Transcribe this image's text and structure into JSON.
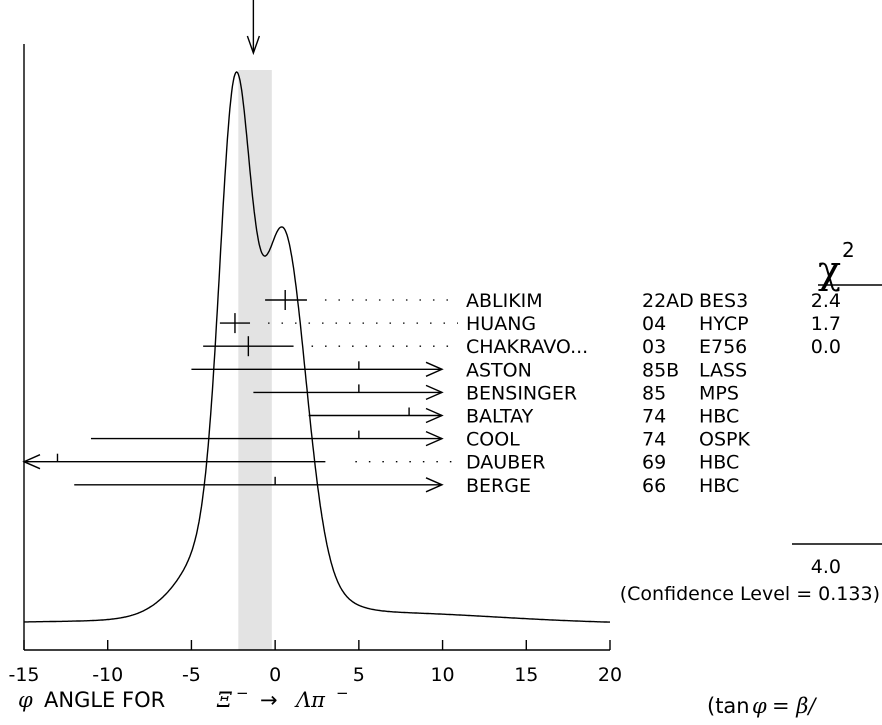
{
  "chart_data": {
    "type": "ideogram",
    "xlim": [
      -15,
      20
    ],
    "x_ticks": [
      "-15",
      "-10",
      "-5",
      "0",
      "5",
      "10",
      "15",
      "20"
    ],
    "x_tick_values": [
      -15,
      -10,
      -5,
      0,
      5,
      10,
      15,
      20
    ],
    "average": {
      "value": -1.3,
      "band": [
        -2.2,
        -0.2
      ]
    },
    "chi2_header": "χ",
    "chi2_exponent": "2",
    "measurements": [
      {
        "author": "ABLIKIM",
        "year": "22AD",
        "technique": "BES3",
        "chi2": "2.4",
        "value": 0.6,
        "lo": -0.6,
        "hi": 1.9,
        "included": true
      },
      {
        "author": "HUANG",
        "year": "04",
        "technique": "HYCP",
        "chi2": "1.7",
        "value": -2.4,
        "lo": -3.3,
        "hi": -1.5,
        "included": true
      },
      {
        "author": "CHAKRAVO...",
        "year": "03",
        "technique": "E756",
        "chi2": "0.0",
        "value": -1.6,
        "lo": -4.3,
        "hi": 1.1,
        "included": true
      },
      {
        "author": "ASTON",
        "year": "85B",
        "technique": "LASS",
        "chi2": "",
        "value": 5.0,
        "lo": -5.0,
        "hi": 15.0,
        "included": false
      },
      {
        "author": "BENSINGER",
        "year": "85",
        "technique": "MPS",
        "chi2": "",
        "value": 5.0,
        "lo": -1.3,
        "hi": 11.3,
        "included": false
      },
      {
        "author": "BALTAY",
        "year": "74",
        "technique": "HBC",
        "chi2": "",
        "value": 8.0,
        "lo": 2.0,
        "hi": 14.0,
        "included": false
      },
      {
        "author": "COOL",
        "year": "74",
        "technique": "OSPK",
        "chi2": "",
        "value": 5.0,
        "lo": -11.0,
        "hi": 21.0,
        "included": false
      },
      {
        "author": "DAUBER",
        "year": "69",
        "technique": "HBC",
        "chi2": "",
        "value": -13.0,
        "lo": -29.0,
        "hi": 3.0,
        "included": false
      },
      {
        "author": "BERGE",
        "year": "66",
        "technique": "HBC",
        "chi2": "",
        "value": 0.0,
        "lo": -12.0,
        "hi": 12.0,
        "included": false
      }
    ],
    "chi2_total": "4.0",
    "confidence_level": "(Confidence Level = 0.133)",
    "xlabel_phi": "φ",
    "xlabel_text": "ANGLE FOR",
    "xlabel_xi": "Ξ",
    "xlabel_minus": "−",
    "xlabel_arrow": "→",
    "xlabel_lambda": "Λπ",
    "formula_open": "(tan",
    "formula_phi": "φ",
    "formula_rest": " = β/",
    "colors": {
      "band": "#e3e3e3",
      "line": "#000000"
    }
  }
}
